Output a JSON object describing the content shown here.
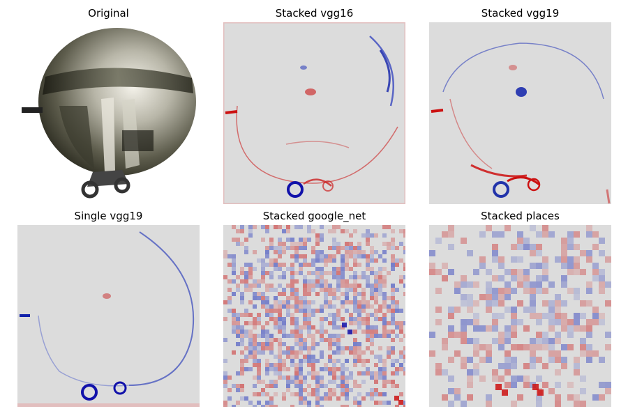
{
  "panels": [
    {
      "title": "Original"
    },
    {
      "title": "Stacked vgg16"
    },
    {
      "title": "Stacked vgg19"
    },
    {
      "title": "Single vgg19"
    },
    {
      "title": "Stacked google_net"
    },
    {
      "title": "Stacked places"
    }
  ],
  "colors": {
    "background_map": "#dcdcdc",
    "positive": "#cc1111",
    "negative": "#1111bb"
  }
}
